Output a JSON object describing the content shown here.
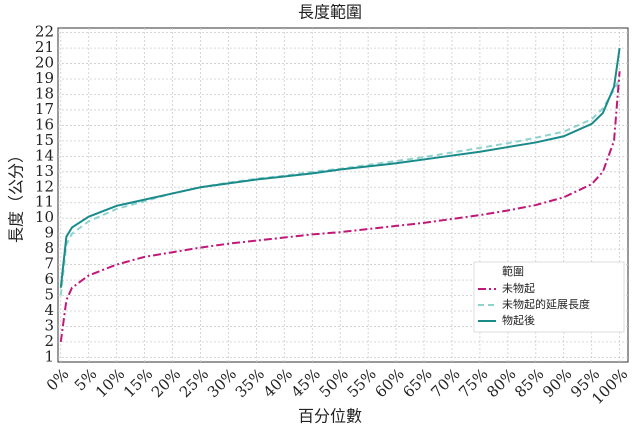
{
  "chart_data": {
    "type": "line",
    "title": "長度範圍",
    "xlabel": "百分位數",
    "ylabel": "長度（公分）",
    "legend_title": "範圍",
    "legend": "lower right",
    "grid": true,
    "x": [
      0,
      1,
      2,
      5,
      10,
      15,
      20,
      25,
      30,
      35,
      40,
      45,
      50,
      55,
      60,
      65,
      70,
      75,
      80,
      85,
      90,
      95,
      97,
      99,
      100
    ],
    "series": [
      {
        "name": "未物起",
        "color": "#c0187a",
        "dash": "8,3,2,3",
        "values": [
          2,
          4.7,
          5.5,
          6.3,
          7.0,
          7.5,
          7.8,
          8.1,
          8.35,
          8.55,
          8.75,
          8.95,
          9.1,
          9.3,
          9.5,
          9.7,
          9.95,
          10.2,
          10.5,
          10.85,
          11.35,
          12.2,
          13,
          15,
          19.5
        ]
      },
      {
        "name": "未物起的延展長度",
        "color": "#8fd3cf",
        "dash": "6,4",
        "values": [
          5,
          8.3,
          9.0,
          9.8,
          10.6,
          11.1,
          11.6,
          12.0,
          12.3,
          12.55,
          12.75,
          13.0,
          13.2,
          13.45,
          13.7,
          13.95,
          14.25,
          14.55,
          14.85,
          15.2,
          15.6,
          16.4,
          17.1,
          18.3,
          19
        ]
      },
      {
        "name": "物起後",
        "color": "#1a8a8a",
        "dash": "",
        "values": [
          5.5,
          8.8,
          9.4,
          10.1,
          10.8,
          11.2,
          11.6,
          12.0,
          12.25,
          12.5,
          12.7,
          12.9,
          13.15,
          13.35,
          13.55,
          13.8,
          14.05,
          14.3,
          14.6,
          14.9,
          15.3,
          16.1,
          16.8,
          18.5,
          21
        ]
      }
    ],
    "xlim": [
      -0.5,
      101.5
    ],
    "ylim": [
      0.7,
      22.3
    ],
    "xticks": [
      {
        "value": 0,
        "label": "0%"
      },
      {
        "value": 5,
        "label": "5%"
      },
      {
        "value": 10,
        "label": "10%"
      },
      {
        "value": 15,
        "label": "15%"
      },
      {
        "value": 20,
        "label": "20%"
      },
      {
        "value": 25,
        "label": "25%"
      },
      {
        "value": 30,
        "label": "30%"
      },
      {
        "value": 35,
        "label": "35%"
      },
      {
        "value": 40,
        "label": "40%"
      },
      {
        "value": 45,
        "label": "45%"
      },
      {
        "value": 50,
        "label": "50%"
      },
      {
        "value": 55,
        "label": "55%"
      },
      {
        "value": 60,
        "label": "60%"
      },
      {
        "value": 65,
        "label": "65%"
      },
      {
        "value": 70,
        "label": "70%"
      },
      {
        "value": 75,
        "label": "75%"
      },
      {
        "value": 80,
        "label": "80%"
      },
      {
        "value": 85,
        "label": "85%"
      },
      {
        "value": 90,
        "label": "90%"
      },
      {
        "value": 95,
        "label": "95%"
      },
      {
        "value": 100,
        "label": "100%"
      }
    ],
    "yticks": [
      1,
      2,
      3,
      4,
      5,
      6,
      7,
      8,
      9,
      10,
      11,
      12,
      13,
      14,
      15,
      16,
      17,
      18,
      19,
      20,
      21,
      22
    ]
  }
}
